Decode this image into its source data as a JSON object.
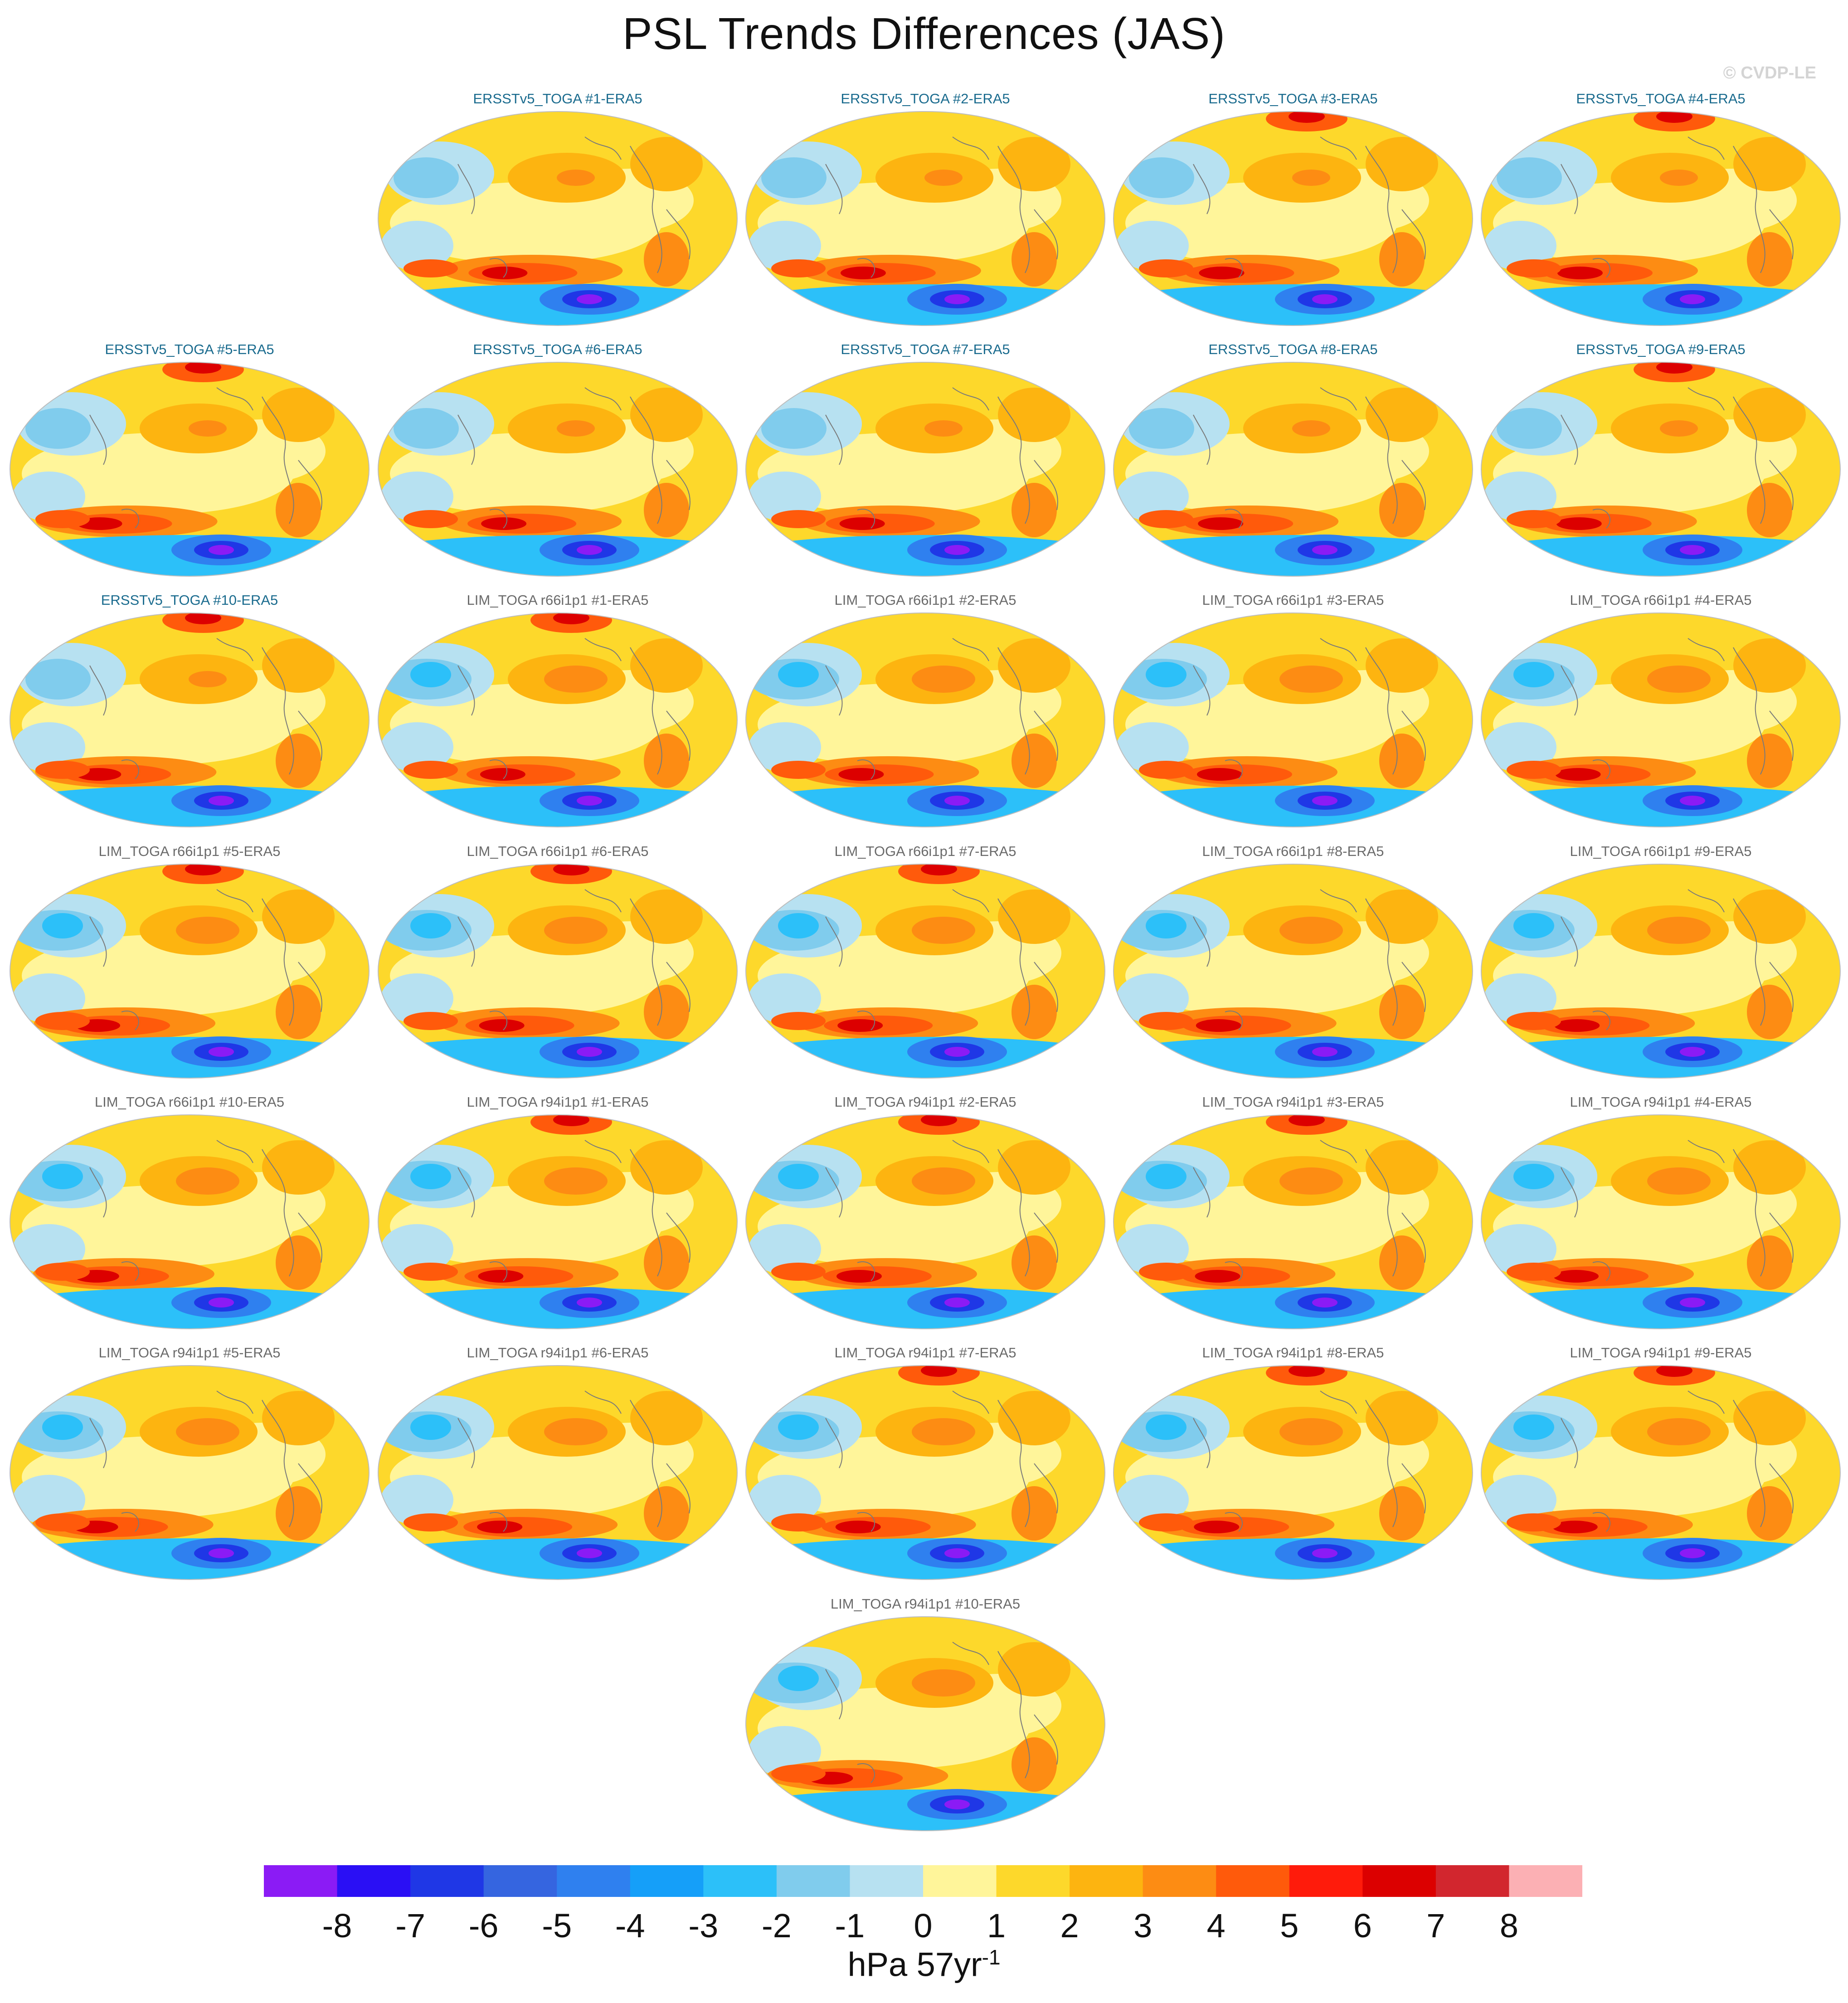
{
  "title": "PSL Trends Differences (JAS)",
  "copyright": "© CVDP-LE",
  "chart_data": {
    "type": "heatmap",
    "title": "PSL Trends Differences (JAS)",
    "projection": "global map (elliptical)",
    "panels": [
      {
        "label": "ERSSTv5_TOGA #1-ERA5",
        "group": "erss"
      },
      {
        "label": "ERSSTv5_TOGA #2-ERA5",
        "group": "erss"
      },
      {
        "label": "ERSSTv5_TOGA #3-ERA5",
        "group": "erss"
      },
      {
        "label": "ERSSTv5_TOGA #4-ERA5",
        "group": "erss"
      },
      {
        "label": "ERSSTv5_TOGA #5-ERA5",
        "group": "erss"
      },
      {
        "label": "ERSSTv5_TOGA #6-ERA5",
        "group": "erss"
      },
      {
        "label": "ERSSTv5_TOGA #7-ERA5",
        "group": "erss"
      },
      {
        "label": "ERSSTv5_TOGA #8-ERA5",
        "group": "erss"
      },
      {
        "label": "ERSSTv5_TOGA #9-ERA5",
        "group": "erss"
      },
      {
        "label": "ERSSTv5_TOGA #10-ERA5",
        "group": "erss"
      },
      {
        "label": "LIM_TOGA r66i1p1 #1-ERA5",
        "group": "lim"
      },
      {
        "label": "LIM_TOGA r66i1p1 #2-ERA5",
        "group": "lim"
      },
      {
        "label": "LIM_TOGA r66i1p1 #3-ERA5",
        "group": "lim"
      },
      {
        "label": "LIM_TOGA r66i1p1 #4-ERA5",
        "group": "lim"
      },
      {
        "label": "LIM_TOGA r66i1p1 #5-ERA5",
        "group": "lim"
      },
      {
        "label": "LIM_TOGA r66i1p1 #6-ERA5",
        "group": "lim"
      },
      {
        "label": "LIM_TOGA r66i1p1 #7-ERA5",
        "group": "lim"
      },
      {
        "label": "LIM_TOGA r66i1p1 #8-ERA5",
        "group": "lim"
      },
      {
        "label": "LIM_TOGA r66i1p1 #9-ERA5",
        "group": "lim"
      },
      {
        "label": "LIM_TOGA r66i1p1 #10-ERA5",
        "group": "lim"
      },
      {
        "label": "LIM_TOGA r94i1p1 #1-ERA5",
        "group": "lim"
      },
      {
        "label": "LIM_TOGA r94i1p1 #2-ERA5",
        "group": "lim"
      },
      {
        "label": "LIM_TOGA r94i1p1 #3-ERA5",
        "group": "lim"
      },
      {
        "label": "LIM_TOGA r94i1p1 #4-ERA5",
        "group": "lim"
      },
      {
        "label": "LIM_TOGA r94i1p1 #5-ERA5",
        "group": "lim"
      },
      {
        "label": "LIM_TOGA r94i1p1 #6-ERA5",
        "group": "lim"
      },
      {
        "label": "LIM_TOGA r94i1p1 #7-ERA5",
        "group": "lim"
      },
      {
        "label": "LIM_TOGA r94i1p1 #8-ERA5",
        "group": "lim"
      },
      {
        "label": "LIM_TOGA r94i1p1 #9-ERA5",
        "group": "lim"
      },
      {
        "label": "LIM_TOGA r94i1p1 #10-ERA5",
        "group": "lim"
      }
    ],
    "colorbar": {
      "label": "hPa 57yr",
      "label_exponent": "-1",
      "ticks": [
        "-8",
        "-7",
        "-6",
        "-5",
        "-4",
        "-3",
        "-2",
        "-1",
        "0",
        "1",
        "2",
        "3",
        "4",
        "5",
        "6",
        "7",
        "8"
      ],
      "colors": [
        "#8b1bf5",
        "#2a0ff5",
        "#1f37e6",
        "#3565e0",
        "#2f80ef",
        "#159ff9",
        "#2cc0f9",
        "#80cced",
        "#b7e1f1",
        "#fff59a",
        "#fdd82b",
        "#fdb410",
        "#fd8c13",
        "#ff5a0b",
        "#ff1b0b",
        "#dc0000",
        "#d2262e",
        "#fcb0b4"
      ]
    }
  }
}
